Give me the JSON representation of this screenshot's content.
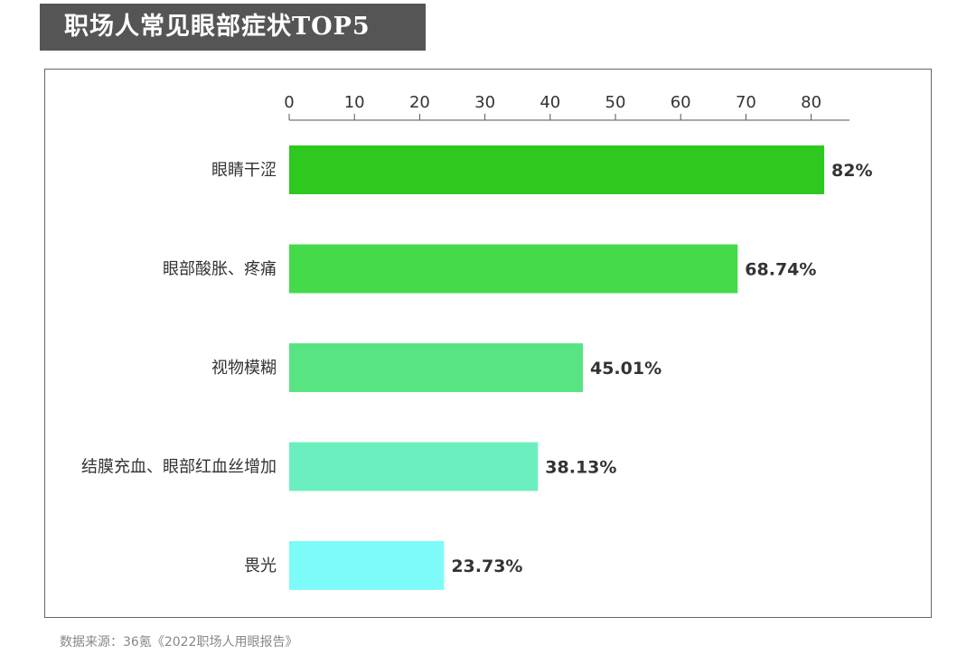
{
  "title": "职场人常见眼部症状TOP5",
  "source": "数据来源：36氪《2022职场人用眼报告》",
  "chart_data": {
    "type": "bar",
    "orientation": "horizontal",
    "title": "职场人常见眼部症状TOP5",
    "categories": [
      "眼睛干涩",
      "眼部酸胀、疼痛",
      "视物模糊",
      "结膜充血、眼部红血丝增加",
      "畏光"
    ],
    "values": [
      82,
      68.74,
      45.01,
      38.13,
      23.73
    ],
    "value_labels": [
      "82%",
      "68.74%",
      "45.01%",
      "38.13%",
      "23.73%"
    ],
    "bar_colors": [
      "#2ec81f",
      "#44da4a",
      "#58e482",
      "#6cefbf",
      "#7dfbf8"
    ],
    "x_ticks": [
      0,
      10,
      20,
      30,
      40,
      50,
      60,
      70,
      80
    ],
    "xlim": [
      0,
      86
    ],
    "axis_position": "top",
    "grid": false,
    "legend": "none"
  }
}
